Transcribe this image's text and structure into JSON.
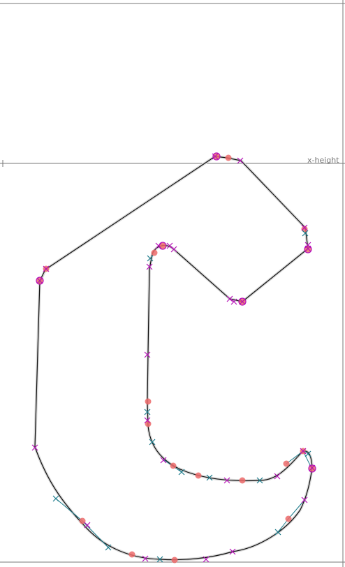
{
  "editor": {
    "metrics": {
      "xheight_label": "x-height"
    },
    "colors": {
      "background": "#ffffff",
      "metric_line": "#777777",
      "outline": "#111111",
      "outline_shadow": "#cfcfcf",
      "on_curve_point": "#ec6a6a",
      "off_curve_point": "#b60fb8",
      "handle_node": "#1a7a8a",
      "handle_line": "#1a7a8a"
    },
    "tool_icons": [
      "on-curve-point-icon",
      "off-curve-handle-icon",
      "tangent-point-icon"
    ]
  }
}
